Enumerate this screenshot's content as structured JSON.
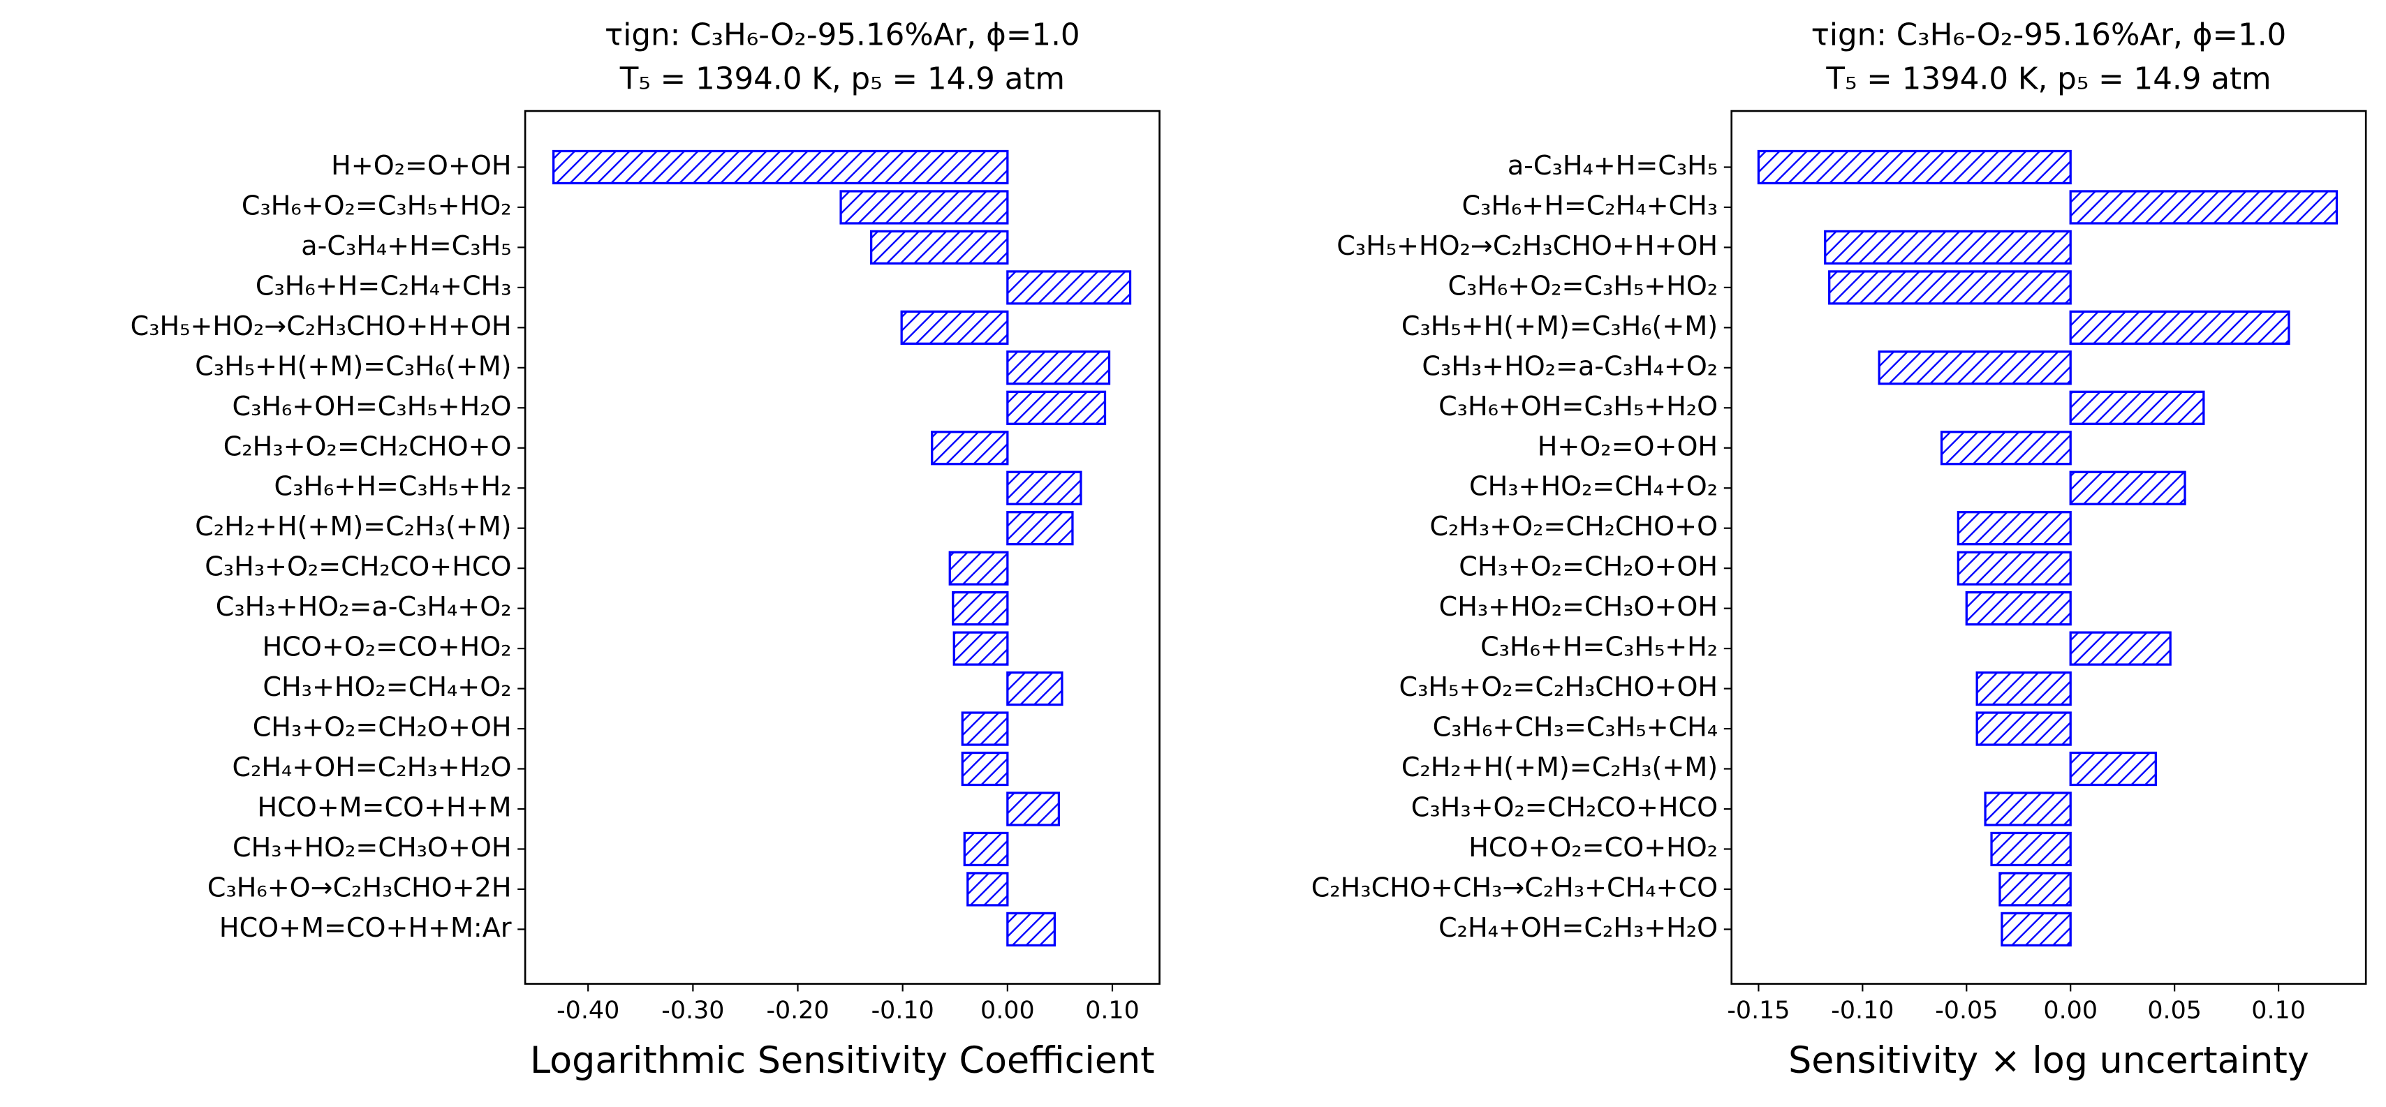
{
  "chart_data": [
    {
      "type": "barh",
      "title": [
        "τign: C₃H₆-O₂-95.16%Ar, ϕ=1.0",
        "T₅ = 1394.0 K, p₅ = 14.9 atm"
      ],
      "xlabel": "Logarithmic Sensitivity Coefficient",
      "color": "#0000ff",
      "hatch": "//",
      "categories": [
        "H+O₂=O+OH",
        "C₃H₆+O₂=C₃H₅+HO₂",
        "a-C₃H₄+H=C₃H₅",
        "C₃H₆+H=C₂H₄+CH₃",
        "C₃H₅+HO₂→C₂H₃CHO+H+OH",
        "C₃H₅+H(+M)=C₃H₆(+M)",
        "C₃H₆+OH=C₃H₅+H₂O",
        "C₂H₃+O₂=CH₂CHO+O",
        "C₃H₆+H=C₃H₅+H₂",
        "C₂H₂+H(+M)=C₂H₃(+M)",
        "C₃H₃+O₂=CH₂CO+HCO",
        "C₃H₃+HO₂=a-C₃H₄+O₂",
        "HCO+O₂=CO+HO₂",
        "CH₃+HO₂=CH₄+O₂",
        "CH₃+O₂=CH₂O+OH",
        "C₂H₄+OH=C₂H₃+H₂O",
        "HCO+M=CO+H+M",
        "CH₃+HO₂=CH₃O+OH",
        "C₃H₆+O→C₂H₃CHO+2H",
        "HCO+M=CO+H+M:Ar"
      ],
      "values": [
        -0.433,
        -0.159,
        -0.13,
        0.117,
        -0.101,
        0.097,
        0.093,
        -0.072,
        0.07,
        0.062,
        -0.055,
        -0.052,
        -0.051,
        0.052,
        -0.043,
        -0.043,
        0.049,
        -0.041,
        -0.038,
        0.045
      ],
      "xlim": [
        -0.46,
        0.145
      ],
      "xticks": [
        {
          "value": -0.4,
          "label": "-0.40"
        },
        {
          "value": -0.3,
          "label": "-0.30"
        },
        {
          "value": -0.2,
          "label": "-0.20"
        },
        {
          "value": -0.1,
          "label": "-0.10"
        },
        {
          "value": 0,
          "label": "0.00"
        },
        {
          "value": 0.1,
          "label": "0.10"
        }
      ]
    },
    {
      "type": "barh",
      "title": [
        "τign: C₃H₆-O₂-95.16%Ar, ϕ=1.0",
        "T₅ = 1394.0 K, p₅ = 14.9 atm"
      ],
      "xlabel": "Sensitivity × log uncertainty",
      "color": "#0000ff",
      "hatch": "//",
      "categories": [
        "a-C₃H₄+H=C₃H₅",
        "C₃H₆+H=C₂H₄+CH₃",
        "C₃H₅+HO₂→C₂H₃CHO+H+OH",
        "C₃H₆+O₂=C₃H₅+HO₂",
        "C₃H₅+H(+M)=C₃H₆(+M)",
        "C₃H₃+HO₂=a-C₃H₄+O₂",
        "C₃H₆+OH=C₃H₅+H₂O",
        "H+O₂=O+OH",
        "CH₃+HO₂=CH₄+O₂",
        "C₂H₃+O₂=CH₂CHO+O",
        "CH₃+O₂=CH₂O+OH",
        "CH₃+HO₂=CH₃O+OH",
        "C₃H₆+H=C₃H₅+H₂",
        "C₃H₅+O₂=C₂H₃CHO+OH",
        "C₃H₆+CH₃=C₃H₅+CH₄",
        "C₂H₂+H(+M)=C₂H₃(+M)",
        "C₃H₃+O₂=CH₂CO+HCO",
        "HCO+O₂=CO+HO₂",
        "C₂H₃CHO+CH₃→C₂H₃+CH₄+CO",
        "C₂H₄+OH=C₂H₃+H₂O"
      ],
      "values": [
        -0.15,
        0.128,
        -0.118,
        -0.116,
        0.105,
        -0.092,
        0.064,
        -0.062,
        0.055,
        -0.054,
        -0.054,
        -0.05,
        0.048,
        -0.045,
        -0.045,
        0.041,
        -0.041,
        -0.038,
        -0.034,
        -0.033
      ],
      "xlim": [
        -0.163,
        0.142
      ],
      "xticks": [
        {
          "value": -0.15,
          "label": "-0.15"
        },
        {
          "value": -0.1,
          "label": "-0.10"
        },
        {
          "value": -0.05,
          "label": "-0.05"
        },
        {
          "value": 0,
          "label": "0.00"
        },
        {
          "value": 0.05,
          "label": "0.05"
        },
        {
          "value": 0.1,
          "label": "0.10"
        }
      ]
    }
  ]
}
